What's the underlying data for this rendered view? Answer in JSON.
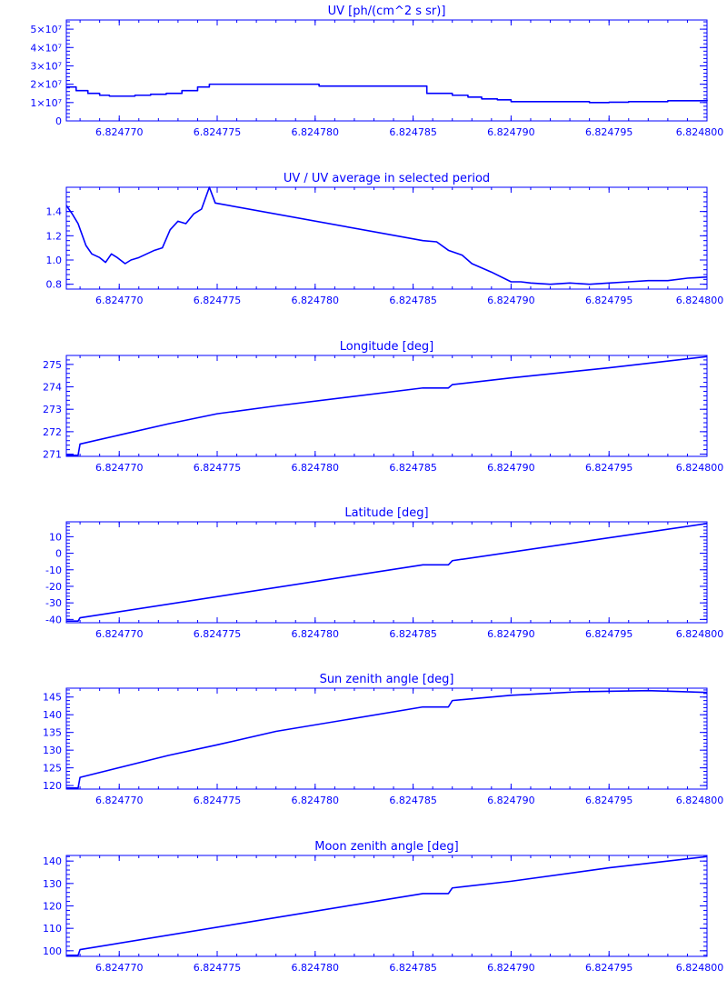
{
  "style": {
    "color": "#0000ff",
    "background": "#ffffff"
  },
  "chart_data": [
    {
      "type": "line",
      "title": "UV [ph/(cm^2 s sr)]",
      "xlim": [
        6.8247673,
        6.8248
      ],
      "x_ticks": [
        "6.824770",
        "6.824775",
        "6.824780",
        "6.824785",
        "6.824790",
        "6.824795",
        "6.824800"
      ],
      "x_tick_values": [
        6.82477,
        6.824775,
        6.82478,
        6.824785,
        6.82479,
        6.824795,
        6.8248
      ],
      "ylim": [
        0,
        55000000
      ],
      "y_ticks": [
        "0",
        "1×10⁷",
        "2×10⁷",
        "3×10⁷",
        "4×10⁷",
        "5×10⁷"
      ],
      "y_tick_values": [
        0,
        10000000,
        20000000,
        30000000,
        40000000,
        50000000
      ],
      "step": true,
      "x": [
        6.8247673,
        6.8247678,
        6.8247684,
        6.824769,
        6.8247695,
        6.82477,
        6.8247708,
        6.8247716,
        6.8247724,
        6.8247732,
        6.824774,
        6.8247746,
        6.8247802,
        6.8247857,
        6.8247865,
        6.824787,
        6.8247878,
        6.8247885,
        6.8247893,
        6.82479,
        6.824791,
        6.824792,
        6.824793,
        6.824794,
        6.824795,
        6.824796,
        6.824797,
        6.824798,
        6.824799,
        6.8248
      ],
      "y": [
        18500000,
        16500000,
        15000000,
        14000000,
        13500000,
        13500000,
        14000000,
        14500000,
        15000000,
        16500000,
        18500000,
        20000000,
        19000000,
        15000000,
        15000000,
        14000000,
        13000000,
        12000000,
        11500000,
        10500000,
        10500000,
        10500000,
        10500000,
        10000000,
        10200000,
        10500000,
        10500000,
        11000000,
        11000000,
        11500000
      ]
    },
    {
      "type": "line",
      "title": "UV / UV average in selected period",
      "xlim": [
        6.8247673,
        6.8248
      ],
      "x_ticks": [
        "6.824770",
        "6.824775",
        "6.824780",
        "6.824785",
        "6.824790",
        "6.824795",
        "6.824800"
      ],
      "x_tick_values": [
        6.82477,
        6.824775,
        6.82478,
        6.824785,
        6.82479,
        6.824795,
        6.8248
      ],
      "ylim": [
        0.76,
        1.6
      ],
      "y_ticks": [
        "0.8",
        "1.0",
        "1.2",
        "1.4"
      ],
      "y_tick_values": [
        0.8,
        1.0,
        1.2,
        1.4
      ],
      "x": [
        6.8247673,
        6.8247676,
        6.8247679,
        6.8247683,
        6.8247686,
        6.824769,
        6.8247693,
        6.8247696,
        6.8247699,
        6.8247703,
        6.8247706,
        6.824771,
        6.8247714,
        6.8247718,
        6.8247722,
        6.8247726,
        6.824773,
        6.8247734,
        6.8247738,
        6.8247742,
        6.8247746,
        6.8247749,
        6.8247855,
        6.8247862,
        6.8247868,
        6.8247875,
        6.824788,
        6.824789,
        6.82479,
        6.8247905,
        6.824791,
        6.824792,
        6.824793,
        6.824794,
        6.824795,
        6.824796,
        6.824797,
        6.824798,
        6.824799,
        6.8248
      ],
      "y": [
        1.45,
        1.38,
        1.3,
        1.12,
        1.05,
        1.02,
        0.98,
        1.05,
        1.02,
        0.97,
        1.0,
        1.02,
        1.05,
        1.08,
        1.1,
        1.25,
        1.32,
        1.3,
        1.38,
        1.42,
        1.6,
        1.47,
        1.16,
        1.15,
        1.08,
        1.04,
        0.97,
        0.9,
        0.82,
        0.82,
        0.81,
        0.8,
        0.81,
        0.8,
        0.81,
        0.82,
        0.83,
        0.83,
        0.85,
        0.86
      ]
    },
    {
      "type": "line",
      "title": "Longitude [deg]",
      "xlim": [
        6.8247673,
        6.8248
      ],
      "x_ticks": [
        "6.824770",
        "6.824775",
        "6.824780",
        "6.824785",
        "6.824790",
        "6.824795",
        "6.824800"
      ],
      "x_tick_values": [
        6.82477,
        6.824775,
        6.82478,
        6.824785,
        6.82479,
        6.824795,
        6.8248
      ],
      "ylim": [
        270.9,
        275.4
      ],
      "y_ticks": [
        "271",
        "272",
        "273",
        "274",
        "275"
      ],
      "y_tick_values": [
        271,
        272,
        273,
        274,
        275
      ],
      "x": [
        6.8247673,
        6.8247679,
        6.824768,
        6.82477,
        6.8247725,
        6.824775,
        6.824778,
        6.8247855,
        6.8247868,
        6.824787,
        6.82479,
        6.824795,
        6.8248
      ],
      "y": [
        270.95,
        270.95,
        271.45,
        271.85,
        272.35,
        272.8,
        273.15,
        273.95,
        273.95,
        274.1,
        274.4,
        274.85,
        275.35
      ]
    },
    {
      "type": "line",
      "title": "Latitude [deg]",
      "xlim": [
        6.8247673,
        6.8248
      ],
      "x_ticks": [
        "6.824770",
        "6.824775",
        "6.824780",
        "6.824785",
        "6.824790",
        "6.824795",
        "6.824800"
      ],
      "x_tick_values": [
        6.82477,
        6.824775,
        6.82478,
        6.824785,
        6.82479,
        6.824795,
        6.8248
      ],
      "ylim": [
        -42,
        19
      ],
      "y_ticks": [
        "-40",
        "-30",
        "-20",
        "-10",
        "0",
        "10"
      ],
      "y_tick_values": [
        -40,
        -30,
        -20,
        -10,
        0,
        10
      ],
      "x": [
        6.8247673,
        6.8247679,
        6.824768,
        6.8247855,
        6.8247868,
        6.824787,
        6.8248
      ],
      "y": [
        -41,
        -41,
        -39,
        -7,
        -7,
        -4.5,
        18
      ]
    },
    {
      "type": "line",
      "title": "Sun zenith angle [deg]",
      "xlim": [
        6.8247673,
        6.8248
      ],
      "x_ticks": [
        "6.824770",
        "6.824775",
        "6.824780",
        "6.824785",
        "6.824790",
        "6.824795",
        "6.824800"
      ],
      "x_tick_values": [
        6.82477,
        6.824775,
        6.82478,
        6.824785,
        6.82479,
        6.824795,
        6.8248
      ],
      "ylim": [
        119,
        147.5
      ],
      "y_ticks": [
        "120",
        "125",
        "130",
        "135",
        "140",
        "145"
      ],
      "y_tick_values": [
        120,
        125,
        130,
        135,
        140,
        145
      ],
      "x": [
        6.8247673,
        6.8247679,
        6.824768,
        6.8247725,
        6.824775,
        6.824778,
        6.8247855,
        6.8247868,
        6.824787,
        6.82479,
        6.8247935,
        6.824797,
        6.8248
      ],
      "y": [
        119.3,
        119.3,
        122.3,
        128.5,
        131.5,
        135.3,
        142.2,
        142.2,
        144,
        145.5,
        146.5,
        146.8,
        146.3
      ]
    },
    {
      "type": "line",
      "title": "Moon zenith angle [deg]",
      "xlim": [
        6.8247673,
        6.8248
      ],
      "x_ticks": [
        "6.824770",
        "6.824775",
        "6.824780",
        "6.824785",
        "6.824790",
        "6.824795",
        "6.824800"
      ],
      "x_tick_values": [
        6.82477,
        6.824775,
        6.82478,
        6.824785,
        6.82479,
        6.824795,
        6.8248
      ],
      "ylim": [
        97.5,
        142.5
      ],
      "y_ticks": [
        "100",
        "110",
        "120",
        "130",
        "140"
      ],
      "y_tick_values": [
        100,
        110,
        120,
        130,
        140
      ],
      "x": [
        6.8247673,
        6.8247679,
        6.824768,
        6.8247855,
        6.8247868,
        6.824787,
        6.82479,
        6.824795,
        6.8248
      ],
      "y": [
        98,
        98,
        100.5,
        125.5,
        125.5,
        128,
        131,
        137,
        142
      ]
    }
  ]
}
